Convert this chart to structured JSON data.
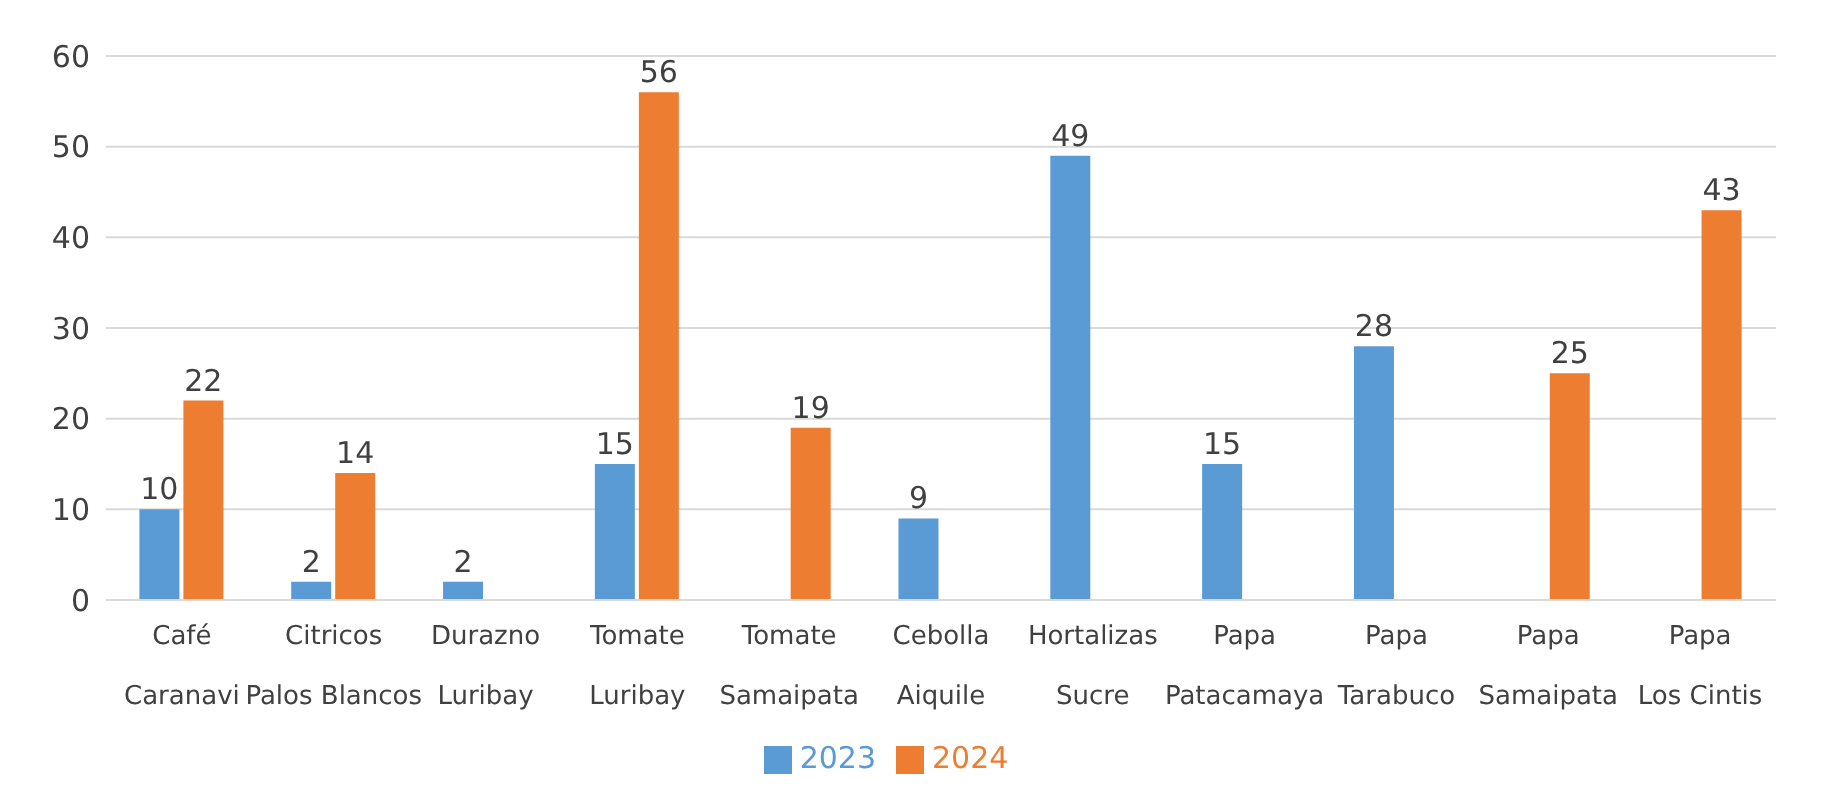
{
  "chart_data": {
    "type": "bar",
    "categories": [
      "Café\nCaranavi",
      "Citricos\nPalos Blancos",
      "Durazno\nLuribay",
      "Tomate\nLuribay",
      "Tomate\nSamaipata",
      "Cebolla\nAiquile",
      "Hortalizas\nSucre",
      "Papa\nPatacamaya",
      "Papa\nTarabuco",
      "Papa\nSamaipata",
      "Papa\nLos Cintis"
    ],
    "series": [
      {
        "name": "2023",
        "color": "#5b9bd5",
        "values": [
          10,
          2,
          2,
          15,
          null,
          9,
          49,
          15,
          28,
          null,
          null
        ]
      },
      {
        "name": "2024",
        "color": "#ed7d31",
        "values": [
          22,
          14,
          null,
          56,
          19,
          null,
          null,
          null,
          null,
          25,
          43
        ]
      }
    ],
    "ylim": [
      0,
      60
    ],
    "yticks": [
      0,
      10,
      20,
      30,
      40,
      50,
      60
    ],
    "grid": "y",
    "legend": "bottom",
    "data_labels": true
  }
}
